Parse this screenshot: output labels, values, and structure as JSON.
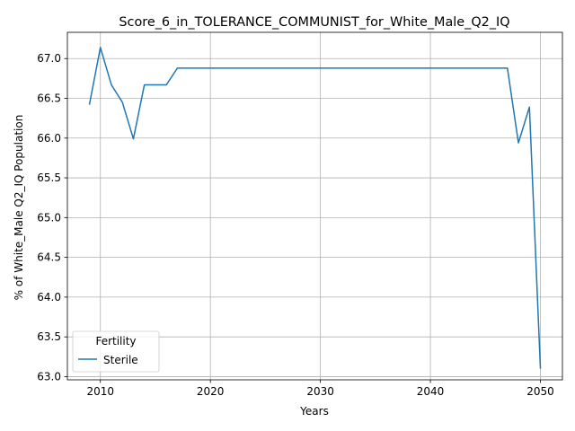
{
  "chart_data": {
    "type": "line",
    "title": "Score_6_in_TOLERANCE_COMMUNIST_for_White_Male_Q2_IQ",
    "xlabel": "Years",
    "ylabel": "% of White_Male Q2_IQ Population",
    "xlim": [
      2007,
      2052
    ],
    "ylim": [
      62.96,
      67.33
    ],
    "grid": true,
    "x_ticks": [
      2010,
      2020,
      2030,
      2040,
      2050
    ],
    "x_tick_labels": [
      "2010",
      "2020",
      "2030",
      "2040",
      "2050"
    ],
    "y_ticks": [
      63.0,
      63.5,
      64.0,
      64.5,
      65.0,
      65.5,
      66.0,
      66.5,
      67.0
    ],
    "y_tick_labels": [
      "63.0",
      "63.5",
      "64.0",
      "64.5",
      "65.0",
      "65.5",
      "66.0",
      "66.5",
      "67.0"
    ],
    "legend": {
      "title": "Fertility",
      "position": "lower-left"
    },
    "series": [
      {
        "name": "Sterile",
        "color": "#1f77b4",
        "x": [
          2009,
          2010,
          2011,
          2012,
          2013,
          2014,
          2015,
          2016,
          2017,
          2018,
          2019,
          2020,
          2021,
          2022,
          2023,
          2024,
          2025,
          2026,
          2027,
          2028,
          2029,
          2030,
          2031,
          2032,
          2033,
          2034,
          2035,
          2036,
          2037,
          2038,
          2039,
          2040,
          2041,
          2042,
          2043,
          2044,
          2045,
          2046,
          2047,
          2048,
          2049,
          2050
        ],
        "values": [
          66.42,
          67.14,
          66.67,
          66.45,
          65.99,
          66.67,
          66.67,
          66.67,
          66.88,
          66.88,
          66.88,
          66.88,
          66.88,
          66.88,
          66.88,
          66.88,
          66.88,
          66.88,
          66.88,
          66.88,
          66.88,
          66.88,
          66.88,
          66.88,
          66.88,
          66.88,
          66.88,
          66.88,
          66.88,
          66.88,
          66.88,
          66.88,
          66.88,
          66.88,
          66.88,
          66.88,
          66.88,
          66.88,
          66.88,
          65.94,
          66.39,
          63.1
        ]
      }
    ]
  }
}
